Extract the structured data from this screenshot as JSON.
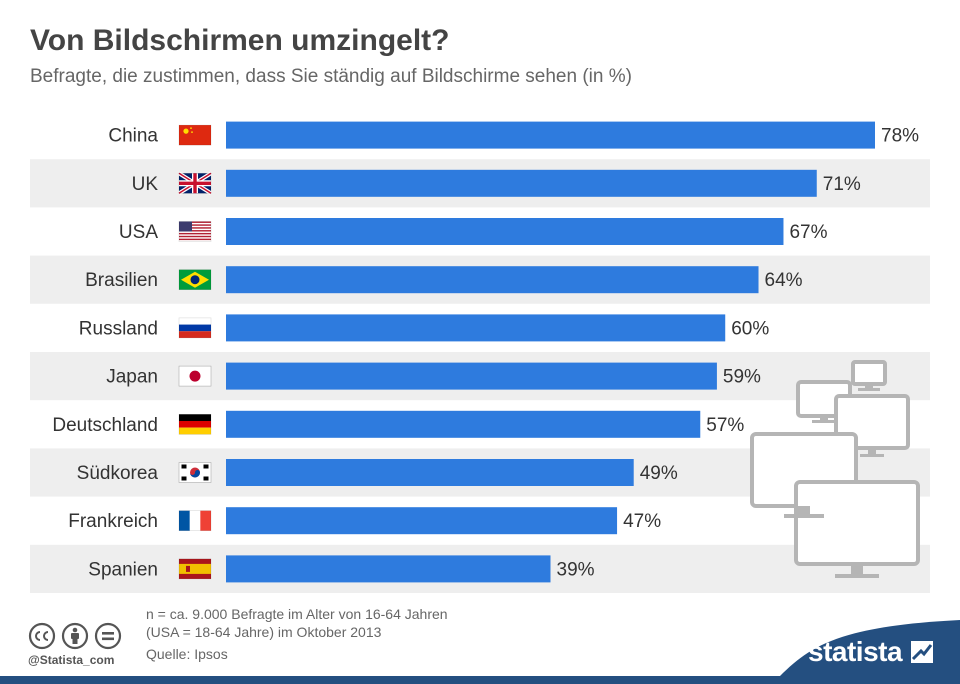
{
  "title": "Von Bildschirmen umzingelt?",
  "subtitle": "Befragte, die zustimmen, dass Sie ständig auf Bildschirme sehen (in %)",
  "colors": {
    "bar": "#2e7bde",
    "row_band": "#eeeeee",
    "brand_bg": "#244f80"
  },
  "chart_data": {
    "type": "bar",
    "orientation": "horizontal",
    "categories": [
      "China",
      "UK",
      "USA",
      "Brasilien",
      "Russland",
      "Japan",
      "Deutschland",
      "Südkorea",
      "Frankreich",
      "Spanien"
    ],
    "values": [
      78,
      71,
      67,
      64,
      60,
      59,
      57,
      49,
      47,
      39
    ],
    "value_labels": [
      "78%",
      "71%",
      "67%",
      "64%",
      "60%",
      "59%",
      "57%",
      "49%",
      "47%",
      "39%"
    ],
    "flags": [
      "flag-china-icon",
      "flag-uk-icon",
      "flag-usa-icon",
      "flag-brazil-icon",
      "flag-russia-icon",
      "flag-japan-icon",
      "flag-germany-icon",
      "flag-south-korea-icon",
      "flag-france-icon",
      "flag-spain-icon"
    ],
    "xlim": [
      0,
      78
    ],
    "grid": false,
    "unit": "%"
  },
  "footer": {
    "note_line1": "n = ca. 9.000 Befragte im Alter von 16-64 Jahren",
    "note_line2": "(USA = 18-64 Jahre) im Oktober 2013",
    "source": "Quelle: Ipsos",
    "credit": "@Statista_com",
    "brand": "statista",
    "license_icons": [
      "cc-icon",
      "attribution-icon",
      "no-derivatives-icon"
    ]
  }
}
